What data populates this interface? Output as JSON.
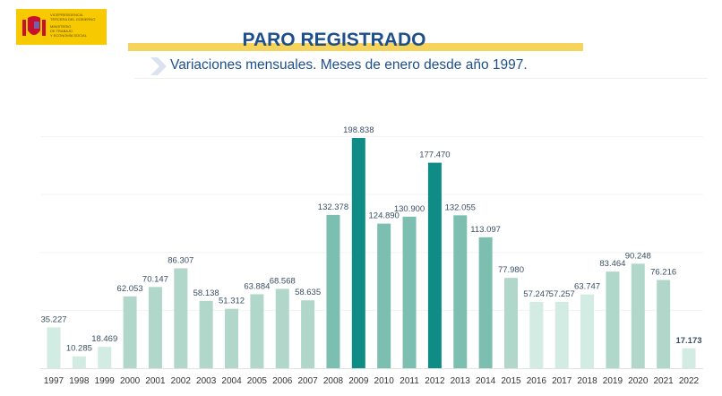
{
  "logo": {
    "lines": [
      "VICEPRESIDENCIA",
      "TERCERA DEL GOBIERNO",
      "MINISTERIO",
      "DE TRABAJO",
      "Y ECONOMÍA SOCIAL"
    ]
  },
  "header": {
    "title": "PARO REGISTRADO",
    "subtitle": "Variaciones mensuales. Meses de enero desde año 1997."
  },
  "chart_data": {
    "type": "bar",
    "title": "PARO REGISTRADO",
    "subtitle": "Variaciones mensuales. Meses de enero desde año 1997.",
    "xlabel": "",
    "ylabel": "",
    "ylim": [
      0,
      200000
    ],
    "grid": true,
    "categories": [
      "1997",
      "1998",
      "1999",
      "2000",
      "2001",
      "2002",
      "2003",
      "2004",
      "2005",
      "2006",
      "2007",
      "2008",
      "2009",
      "2010",
      "2011",
      "2012",
      "2013",
      "2014",
      "2015",
      "2016",
      "2017",
      "2018",
      "2019",
      "2020",
      "2021",
      "2022"
    ],
    "values": [
      35227,
      10285,
      18469,
      62053,
      70147,
      86307,
      58138,
      51312,
      63884,
      68568,
      58635,
      132378,
      198838,
      124890,
      130900,
      177470,
      132055,
      113097,
      77980,
      57247,
      57257,
      63747,
      83464,
      90248,
      76216,
      17173
    ],
    "labels": [
      "35.227",
      "10.285",
      "18.469",
      "62.053",
      "70.147",
      "86.307",
      "58.138",
      "51.312",
      "63.884",
      "68.568",
      "58.635",
      "132.378",
      "198.838",
      "124.890",
      "130.900",
      "177.470",
      "132.055",
      "113.097",
      "77.980",
      "57.247",
      "57.257",
      "63.747",
      "83.464",
      "90.248",
      "76.216",
      "17.173"
    ],
    "shades": [
      3,
      3,
      3,
      2,
      2,
      2,
      2,
      2,
      2,
      2,
      2,
      1,
      0,
      1,
      1,
      0,
      1,
      1,
      2,
      3,
      3,
      3,
      2,
      2,
      2,
      3
    ],
    "colors": [
      "#0f8c85",
      "#7cbfb0",
      "#b0d7ca",
      "#d2ebe3"
    ]
  }
}
